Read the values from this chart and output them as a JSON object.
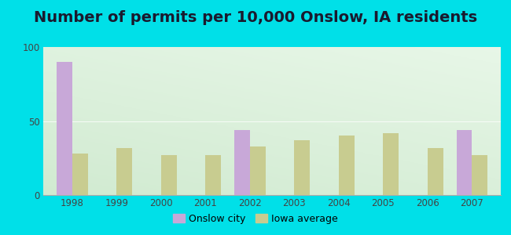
{
  "title": "Number of permits per 10,000 Onslow, IA residents",
  "years": [
    1998,
    1999,
    2000,
    2001,
    2002,
    2003,
    2004,
    2005,
    2006,
    2007
  ],
  "onslow_values": [
    90,
    0,
    0,
    0,
    44,
    0,
    0,
    0,
    0,
    44
  ],
  "iowa_values": [
    28,
    32,
    27,
    27,
    33,
    37,
    40,
    42,
    32,
    27
  ],
  "onslow_color": "#c8a8d8",
  "iowa_color": "#c8cc90",
  "ylim": [
    0,
    100
  ],
  "yticks": [
    0,
    50,
    100
  ],
  "bg_outer": "#00e0e8",
  "title_fontsize": 14,
  "bar_width": 0.35,
  "legend_labels": [
    "Onslow city",
    "Iowa average"
  ]
}
